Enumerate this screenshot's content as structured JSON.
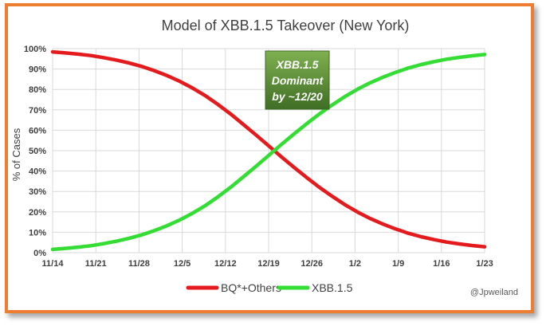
{
  "chart_data": {
    "type": "line",
    "title": "Model of XBB.1.5 Takeover (New York)",
    "ylabel": "% of Cases",
    "xlabel": "",
    "x_ticks": [
      "11/14",
      "11/21",
      "11/28",
      "12/5",
      "12/12",
      "12/19",
      "12/26",
      "1/2",
      "1/9",
      "1/16",
      "1/23"
    ],
    "y_ticks": [
      "0%",
      "10%",
      "20%",
      "30%",
      "40%",
      "50%",
      "60%",
      "70%",
      "80%",
      "90%",
      "100%"
    ],
    "ylim": [
      0,
      100
    ],
    "grid": true,
    "legend_position": "bottom",
    "series": [
      {
        "name": "BQ*+Others",
        "color": "#e41a1c",
        "values": [
          98.4,
          97.9,
          97.3,
          96.6,
          95.6,
          94.4,
          93.0,
          91.3,
          89.2,
          86.8,
          84.0,
          80.7,
          77.0,
          72.7,
          68.0,
          62.9,
          57.7,
          52.4,
          47.0,
          41.8,
          36.8,
          32.0,
          27.6,
          23.5,
          19.9,
          16.7,
          14.0,
          11.6,
          9.5,
          7.8,
          6.4,
          5.2,
          4.3,
          3.5,
          2.9
        ]
      },
      {
        "name": "XBB.1.5",
        "color": "#33dd33",
        "values": [
          1.6,
          2.1,
          2.7,
          3.4,
          4.4,
          5.6,
          7.0,
          8.7,
          10.8,
          13.2,
          16.0,
          19.3,
          23.0,
          27.3,
          32.0,
          37.1,
          42.3,
          47.6,
          53.0,
          58.2,
          63.2,
          68.0,
          72.4,
          76.5,
          80.1,
          83.3,
          86.0,
          88.4,
          90.5,
          92.2,
          93.6,
          94.8,
          95.7,
          96.5,
          97.1
        ]
      }
    ],
    "annotation": {
      "lines": [
        "XBB.1.5",
        "Dominant",
        "by ~12/20"
      ],
      "background": "#5a8a3a",
      "text_color": "#ffffff"
    }
  },
  "watermark": "@Jpweiland"
}
